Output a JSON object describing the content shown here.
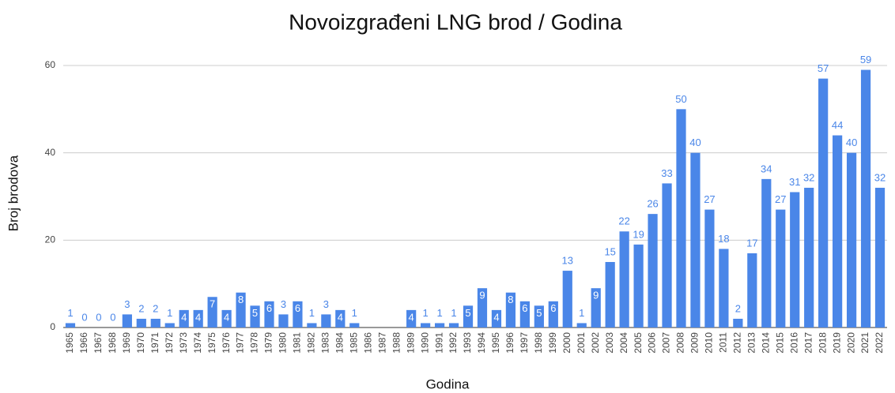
{
  "chart_data": {
    "type": "bar",
    "title": "Novoizgrađeni LNG brod / Godina",
    "x_label": "Godina",
    "y_label": "Broj brodova",
    "categories": [
      "1965",
      "1966",
      "1967",
      "1968",
      "1969",
      "1970",
      "1971",
      "1972",
      "1973",
      "1974",
      "1975",
      "1976",
      "1977",
      "1978",
      "1979",
      "1980",
      "1981",
      "1982",
      "1983",
      "1984",
      "1985",
      "1986",
      "1987",
      "1988",
      "1989",
      "1990",
      "1991",
      "1992",
      "1993",
      "1994",
      "1995",
      "1996",
      "1997",
      "1998",
      "1999",
      "2000",
      "2001",
      "2002",
      "2003",
      "2004",
      "2005",
      "2006",
      "2007",
      "2008",
      "2009",
      "2010",
      "2011",
      "2012",
      "2013",
      "2014",
      "2015",
      "2016",
      "2017",
      "2018",
      "2019",
      "2020",
      "2021",
      "2022"
    ],
    "values": [
      1,
      0,
      0,
      0,
      3,
      2,
      2,
      1,
      4,
      4,
      7,
      4,
      8,
      5,
      6,
      3,
      6,
      1,
      3,
      4,
      1,
      null,
      null,
      null,
      4,
      1,
      1,
      1,
      5,
      9,
      4,
      8,
      6,
      5,
      6,
      13,
      1,
      9,
      15,
      22,
      19,
      26,
      33,
      50,
      40,
      27,
      18,
      2,
      17,
      34,
      27,
      31,
      32,
      57,
      44,
      40,
      59,
      32
    ],
    "color": "#4a86e8",
    "ylim": [
      0,
      60
    ],
    "yticks": [
      0,
      20,
      40,
      60
    ],
    "grid": true
  }
}
